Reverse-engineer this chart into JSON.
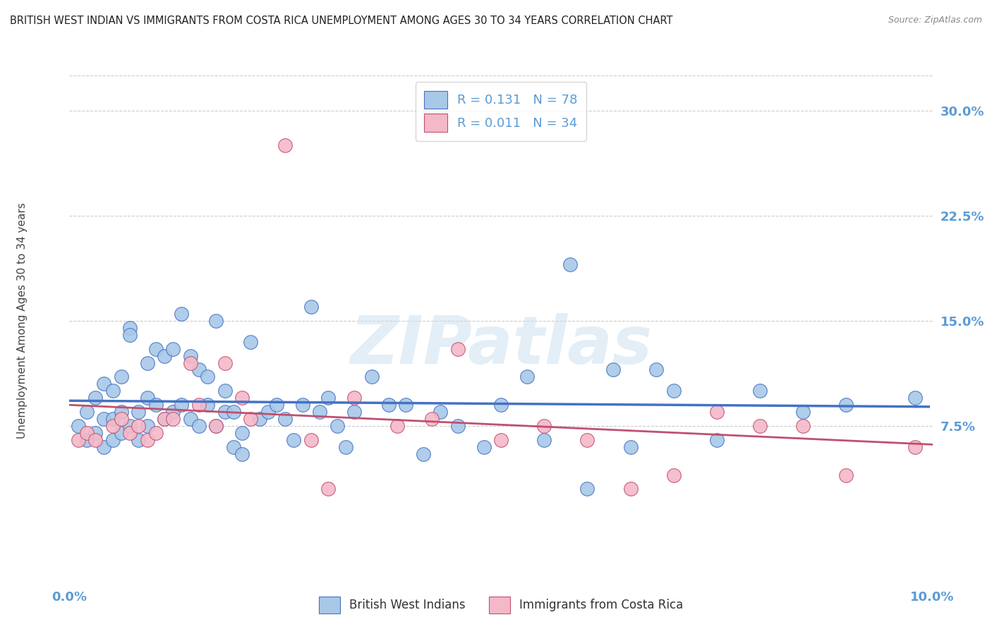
{
  "title": "BRITISH WEST INDIAN VS IMMIGRANTS FROM COSTA RICA UNEMPLOYMENT AMONG AGES 30 TO 34 YEARS CORRELATION CHART",
  "source": "Source: ZipAtlas.com",
  "ylabel": "Unemployment Among Ages 30 to 34 years",
  "y_tick_labels": [
    "7.5%",
    "15.0%",
    "22.5%",
    "30.0%"
  ],
  "y_tick_values": [
    0.075,
    0.15,
    0.225,
    0.3
  ],
  "xmin": 0.0,
  "xmax": 0.1,
  "ymin": -0.025,
  "ymax": 0.325,
  "blue_R": 0.131,
  "blue_N": 78,
  "pink_R": 0.011,
  "pink_N": 34,
  "blue_color": "#a8c8e8",
  "blue_line_color": "#4472c4",
  "pink_color": "#f4b8c8",
  "pink_line_color": "#c05070",
  "legend_label_blue": "British West Indians",
  "legend_label_pink": "Immigrants from Costa Rica",
  "watermark": "ZIPatlas",
  "axis_label_color": "#5b9bd5",
  "grid_color": "#cccccc",
  "blue_x": [
    0.001,
    0.002,
    0.002,
    0.003,
    0.003,
    0.004,
    0.004,
    0.004,
    0.005,
    0.005,
    0.005,
    0.006,
    0.006,
    0.006,
    0.007,
    0.007,
    0.007,
    0.008,
    0.008,
    0.009,
    0.009,
    0.009,
    0.01,
    0.01,
    0.011,
    0.011,
    0.012,
    0.012,
    0.013,
    0.013,
    0.014,
    0.014,
    0.015,
    0.015,
    0.016,
    0.016,
    0.017,
    0.017,
    0.018,
    0.018,
    0.019,
    0.019,
    0.02,
    0.02,
    0.021,
    0.022,
    0.023,
    0.024,
    0.025,
    0.026,
    0.027,
    0.028,
    0.029,
    0.03,
    0.031,
    0.032,
    0.033,
    0.035,
    0.037,
    0.039,
    0.041,
    0.043,
    0.045,
    0.048,
    0.05,
    0.053,
    0.055,
    0.058,
    0.06,
    0.063,
    0.065,
    0.068,
    0.07,
    0.075,
    0.08,
    0.085,
    0.09,
    0.098
  ],
  "blue_y": [
    0.075,
    0.085,
    0.065,
    0.095,
    0.07,
    0.105,
    0.08,
    0.06,
    0.1,
    0.08,
    0.065,
    0.11,
    0.085,
    0.07,
    0.145,
    0.14,
    0.075,
    0.085,
    0.065,
    0.12,
    0.095,
    0.075,
    0.13,
    0.09,
    0.125,
    0.08,
    0.13,
    0.085,
    0.155,
    0.09,
    0.125,
    0.08,
    0.115,
    0.075,
    0.11,
    0.09,
    0.15,
    0.075,
    0.1,
    0.085,
    0.085,
    0.06,
    0.07,
    0.055,
    0.135,
    0.08,
    0.085,
    0.09,
    0.08,
    0.065,
    0.09,
    0.16,
    0.085,
    0.095,
    0.075,
    0.06,
    0.085,
    0.11,
    0.09,
    0.09,
    0.055,
    0.085,
    0.075,
    0.06,
    0.09,
    0.11,
    0.065,
    0.19,
    0.03,
    0.115,
    0.06,
    0.115,
    0.1,
    0.065,
    0.1,
    0.085,
    0.09,
    0.095
  ],
  "pink_x": [
    0.001,
    0.002,
    0.003,
    0.005,
    0.006,
    0.007,
    0.008,
    0.009,
    0.01,
    0.011,
    0.012,
    0.014,
    0.015,
    0.017,
    0.018,
    0.02,
    0.021,
    0.025,
    0.028,
    0.03,
    0.033,
    0.038,
    0.042,
    0.045,
    0.05,
    0.055,
    0.06,
    0.065,
    0.07,
    0.075,
    0.08,
    0.085,
    0.09,
    0.098
  ],
  "pink_y": [
    0.065,
    0.07,
    0.065,
    0.075,
    0.08,
    0.07,
    0.075,
    0.065,
    0.07,
    0.08,
    0.08,
    0.12,
    0.09,
    0.075,
    0.12,
    0.095,
    0.08,
    0.275,
    0.065,
    0.03,
    0.095,
    0.075,
    0.08,
    0.13,
    0.065,
    0.075,
    0.065,
    0.03,
    0.04,
    0.085,
    0.075,
    0.075,
    0.04,
    0.06
  ]
}
